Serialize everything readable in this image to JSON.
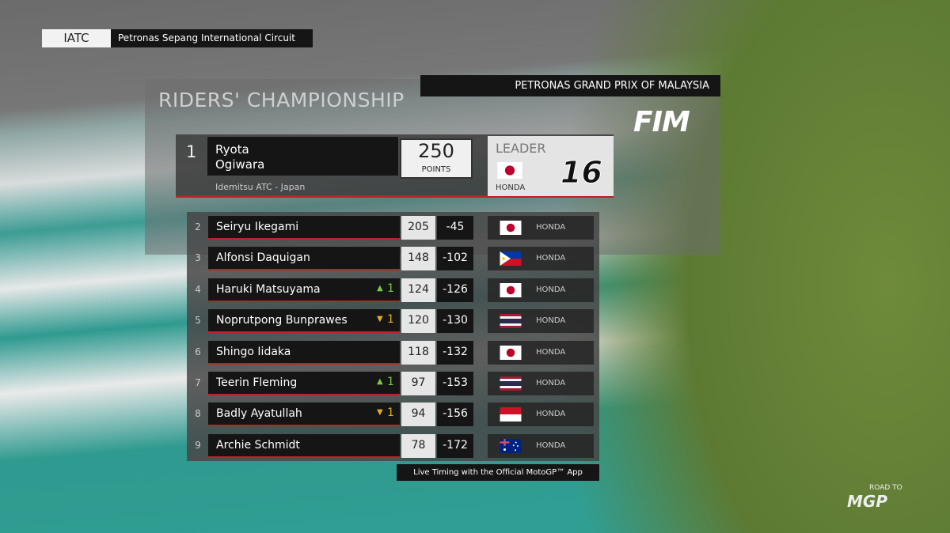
{
  "header": {
    "series": "IATC",
    "circuit": "Petronas Sepang International Circuit"
  },
  "event": "PETRONAS GRAND PRIX OF MALAYSIA",
  "title": "RIDERS' CHAMPIONSHIP",
  "sanction_logo": "FIM",
  "leader": {
    "position": 1,
    "first_name": "Ryota",
    "last_name": "Ogiwara",
    "team": "Idemitsu ATC - Japan",
    "points": 250,
    "points_label": "POINTS",
    "tag": "LEADER",
    "flag": "JP",
    "manufacturer": "HONDA",
    "number": 16
  },
  "standings": [
    {
      "position": 2,
      "name": "Seiryu Ikegami",
      "change": null,
      "points": 205,
      "gap": -45,
      "flag": "JP",
      "manufacturer": "HONDA"
    },
    {
      "position": 3,
      "name": "Alfonsi Daquigan",
      "change": null,
      "points": 148,
      "gap": -102,
      "flag": "PH",
      "manufacturer": "HONDA"
    },
    {
      "position": 4,
      "name": "Haruki Matsuyama",
      "change": {
        "direction": "up",
        "value": 1
      },
      "points": 124,
      "gap": -126,
      "flag": "JP",
      "manufacturer": "HONDA"
    },
    {
      "position": 5,
      "name": "Noprutpong Bunprawes",
      "change": {
        "direction": "down",
        "value": 1
      },
      "points": 120,
      "gap": -130,
      "flag": "TH",
      "manufacturer": "HONDA"
    },
    {
      "position": 6,
      "name": "Shingo Iidaka",
      "change": null,
      "points": 118,
      "gap": -132,
      "flag": "JP",
      "manufacturer": "HONDA"
    },
    {
      "position": 7,
      "name": "Teerin Fleming",
      "change": {
        "direction": "up",
        "value": 1
      },
      "points": 97,
      "gap": -153,
      "flag": "TH",
      "manufacturer": "HONDA"
    },
    {
      "position": 8,
      "name": "Badly Ayatullah",
      "change": {
        "direction": "down",
        "value": 1
      },
      "points": 94,
      "gap": -156,
      "flag": "ID",
      "manufacturer": "HONDA"
    },
    {
      "position": 9,
      "name": "Archie Schmidt",
      "change": null,
      "points": 78,
      "gap": -172,
      "flag": "AU",
      "manufacturer": "HONDA"
    }
  ],
  "footer": "Live Timing with the Official MotoGP™ App",
  "brand": {
    "line1": "ROAD TO",
    "line2": "MGP"
  }
}
